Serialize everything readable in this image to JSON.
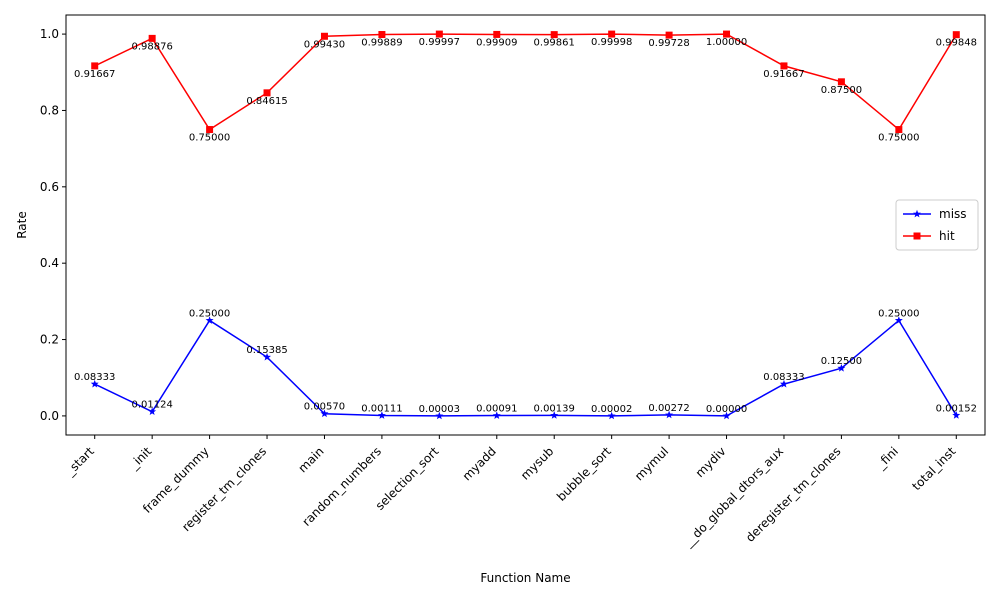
{
  "chart_data": {
    "type": "line",
    "categories": [
      "_start",
      "_init",
      "frame_dummy",
      "register_tm_clones",
      "main",
      "random_numbers",
      "selection_sort",
      "myadd",
      "mysub",
      "bubble_sort",
      "mymul",
      "mydiv",
      "__do_global_dtors_aux",
      "deregister_tm_clones",
      "_fini",
      "total_inst"
    ],
    "series": [
      {
        "name": "miss",
        "color": "#0000ff",
        "marker": "star",
        "values": [
          0.08333,
          0.01124,
          0.25,
          0.15385,
          0.0057,
          0.00111,
          3e-05,
          0.00091,
          0.00139,
          2e-05,
          0.00272,
          0.0,
          0.08333,
          0.125,
          0.25,
          0.00152
        ],
        "labels": [
          "0.08333",
          "0.01124",
          "0.25000",
          "0.15385",
          "0.00570",
          "0.00111",
          "0.00003",
          "0.00091",
          "0.00139",
          "0.00002",
          "0.00272",
          "0.00000",
          "0.08333",
          "0.12500",
          "0.25000",
          "0.00152"
        ]
      },
      {
        "name": "hit",
        "color": "#ff0000",
        "marker": "square",
        "values": [
          0.91667,
          0.98876,
          0.75,
          0.84615,
          0.9943,
          0.99889,
          0.99997,
          0.99909,
          0.99861,
          0.99998,
          0.99728,
          1.0,
          0.91667,
          0.875,
          0.75,
          0.99848
        ],
        "labels": [
          "0.91667",
          "0.98876",
          "0.75000",
          "0.84615",
          "0.99430",
          "0.99889",
          "0.99997",
          "0.99909",
          "0.99861",
          "0.99998",
          "0.99728",
          "1.00000",
          "0.91667",
          "0.87500",
          "0.75000",
          "0.99848"
        ]
      }
    ],
    "xlabel": "Function Name",
    "ylabel": "Rate",
    "ylim": [
      -0.05,
      1.05
    ],
    "yticks": [
      0.0,
      0.2,
      0.4,
      0.6,
      0.8,
      1.0
    ],
    "ytick_labels": [
      "0.0",
      "0.2",
      "0.4",
      "0.6",
      "0.8",
      "1.0"
    ],
    "grid": false,
    "legend_position": "center-right"
  }
}
